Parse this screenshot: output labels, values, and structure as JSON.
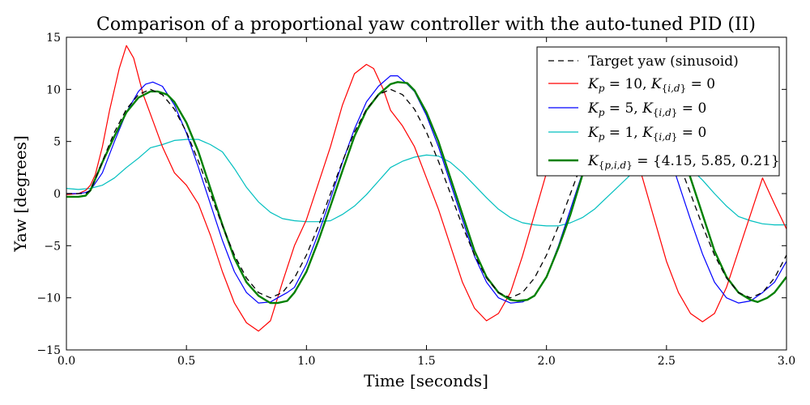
{
  "chart_data": {
    "type": "line",
    "title": "Comparison of a proportional yaw controller with the auto-tuned PID (II)",
    "xlabel": "Time [seconds]",
    "ylabel": "Yaw [degrees]",
    "xlim": [
      0.0,
      3.0
    ],
    "ylim": [
      -15,
      15
    ],
    "xticks": [
      0.0,
      0.5,
      1.0,
      1.5,
      2.0,
      2.5,
      3.0
    ],
    "xtick_labels": [
      "0.0",
      "0.5",
      "1.0",
      "1.5",
      "2.0",
      "2.5",
      "3.0"
    ],
    "yticks": [
      -15,
      -10,
      -5,
      0,
      5,
      10,
      15
    ],
    "ytick_labels": [
      "−15",
      "−10",
      "−5",
      "0",
      "5",
      "10",
      "15"
    ],
    "grid": false,
    "legend_position": "top-right",
    "series": [
      {
        "name": "Target yaw (sinusoid)",
        "color": "#000000",
        "style": "dashed",
        "width": 1.3,
        "x": [
          0.0,
          0.05,
          0.08,
          0.1,
          0.15,
          0.2,
          0.25,
          0.3,
          0.35,
          0.4,
          0.45,
          0.5,
          0.55,
          0.6,
          0.65,
          0.7,
          0.75,
          0.8,
          0.85,
          0.9,
          0.95,
          1.0,
          1.05,
          1.1,
          1.15,
          1.2,
          1.25,
          1.3,
          1.35,
          1.4,
          1.45,
          1.5,
          1.55,
          1.6,
          1.65,
          1.7,
          1.75,
          1.8,
          1.85,
          1.9,
          1.95,
          2.0,
          2.05,
          2.1,
          2.15,
          2.2,
          2.25,
          2.3,
          2.35,
          2.4,
          2.45,
          2.5,
          2.55,
          2.6,
          2.65,
          2.7,
          2.75,
          2.8,
          2.85,
          2.9,
          2.95,
          3.0
        ],
        "y": [
          0.0,
          0.0,
          0.0,
          0.3,
          3.1,
          5.9,
          8.1,
          9.5,
          10.0,
          9.5,
          8.1,
          5.9,
          3.1,
          0.0,
          -3.1,
          -5.9,
          -8.1,
          -9.5,
          -10.0,
          -9.5,
          -8.1,
          -5.9,
          -3.1,
          0.0,
          3.1,
          5.9,
          8.1,
          9.5,
          10.0,
          9.5,
          8.1,
          5.9,
          3.1,
          0.0,
          -3.1,
          -5.9,
          -8.1,
          -9.5,
          -10.0,
          -9.5,
          -8.1,
          -5.9,
          -3.1,
          0.0,
          3.1,
          5.9,
          8.1,
          9.5,
          10.0,
          9.5,
          8.1,
          5.9,
          3.1,
          0.0,
          -3.1,
          -5.9,
          -8.1,
          -9.5,
          -10.0,
          -9.5,
          -8.1,
          -5.9
        ]
      },
      {
        "name": "K_p = 10, K_{i,d} = 0",
        "color": "#ff0000",
        "style": "solid",
        "width": 1.2,
        "x": [
          0.0,
          0.05,
          0.08,
          0.1,
          0.12,
          0.15,
          0.18,
          0.22,
          0.25,
          0.28,
          0.32,
          0.36,
          0.4,
          0.45,
          0.5,
          0.55,
          0.6,
          0.65,
          0.7,
          0.75,
          0.8,
          0.85,
          0.9,
          0.95,
          1.0,
          1.05,
          1.1,
          1.15,
          1.2,
          1.25,
          1.28,
          1.32,
          1.35,
          1.4,
          1.45,
          1.5,
          1.55,
          1.6,
          1.65,
          1.7,
          1.75,
          1.8,
          1.85,
          1.9,
          1.95,
          2.0,
          2.05,
          2.1,
          2.15,
          2.2,
          2.25,
          2.3,
          2.35,
          2.4,
          2.45,
          2.5,
          2.55,
          2.6,
          2.65,
          2.7,
          2.75,
          2.8,
          2.85,
          2.9,
          2.95,
          3.0
        ],
        "y": [
          -0.1,
          0.0,
          0.3,
          0.8,
          1.8,
          4.5,
          8.0,
          12.0,
          14.2,
          13.0,
          9.5,
          7.0,
          4.5,
          2.0,
          0.8,
          -1.0,
          -4.0,
          -7.5,
          -10.5,
          -12.4,
          -13.2,
          -12.2,
          -8.5,
          -5.0,
          -2.5,
          1.0,
          4.5,
          8.5,
          11.5,
          12.4,
          12.0,
          10.0,
          8.0,
          6.5,
          4.5,
          1.5,
          -1.5,
          -5.0,
          -8.5,
          -11.0,
          -12.2,
          -11.5,
          -9.5,
          -6.0,
          -2.0,
          2.0,
          6.0,
          9.0,
          11.0,
          11.5,
          10.5,
          8.0,
          5.0,
          1.5,
          -2.5,
          -6.5,
          -9.5,
          -11.5,
          -12.3,
          -11.5,
          -9.0,
          -5.5,
          -2.0,
          1.5,
          -1.0,
          -3.4
        ]
      },
      {
        "name": "K_p = 5, K_{i,d} = 0",
        "color": "#0000ff",
        "style": "solid",
        "width": 1.2,
        "x": [
          0.0,
          0.05,
          0.08,
          0.1,
          0.15,
          0.2,
          0.25,
          0.3,
          0.33,
          0.36,
          0.4,
          0.45,
          0.5,
          0.55,
          0.6,
          0.65,
          0.7,
          0.75,
          0.8,
          0.85,
          0.88,
          0.92,
          0.95,
          1.0,
          1.05,
          1.1,
          1.15,
          1.2,
          1.25,
          1.3,
          1.35,
          1.38,
          1.42,
          1.45,
          1.5,
          1.55,
          1.6,
          1.65,
          1.7,
          1.75,
          1.8,
          1.85,
          1.9,
          1.95,
          2.0,
          2.05,
          2.1,
          2.15,
          2.2,
          2.25,
          2.3,
          2.35,
          2.4,
          2.45,
          2.5,
          2.55,
          2.6,
          2.65,
          2.7,
          2.75,
          2.8,
          2.85,
          2.9,
          2.95,
          3.0
        ],
        "y": [
          0.0,
          0.0,
          0.1,
          0.3,
          2.0,
          5.0,
          7.8,
          9.8,
          10.5,
          10.7,
          10.3,
          8.5,
          5.8,
          2.5,
          -1.0,
          -4.5,
          -7.5,
          -9.5,
          -10.5,
          -10.4,
          -10.0,
          -9.5,
          -9.0,
          -6.8,
          -3.8,
          -0.5,
          3.0,
          6.2,
          8.8,
          10.3,
          11.3,
          11.3,
          10.5,
          9.8,
          7.5,
          4.5,
          1.0,
          -2.5,
          -6.0,
          -8.5,
          -10.0,
          -10.5,
          -10.4,
          -9.8,
          -8.0,
          -5.0,
          -1.5,
          2.0,
          5.5,
          8.2,
          9.7,
          10.2,
          9.5,
          7.5,
          4.5,
          1.0,
          -2.5,
          -5.8,
          -8.5,
          -10.0,
          -10.5,
          -10.3,
          -9.5,
          -8.5,
          -6.5
        ]
      },
      {
        "name": "K_p = 1, K_{i,d} = 0",
        "color": "#00bfbf",
        "style": "solid",
        "width": 1.2,
        "x": [
          0.0,
          0.05,
          0.1,
          0.15,
          0.2,
          0.25,
          0.3,
          0.35,
          0.4,
          0.45,
          0.5,
          0.55,
          0.6,
          0.65,
          0.7,
          0.75,
          0.8,
          0.85,
          0.9,
          0.95,
          1.0,
          1.05,
          1.1,
          1.15,
          1.2,
          1.25,
          1.3,
          1.35,
          1.4,
          1.45,
          1.5,
          1.55,
          1.6,
          1.65,
          1.7,
          1.75,
          1.8,
          1.85,
          1.9,
          1.95,
          2.0,
          2.05,
          2.1,
          2.15,
          2.2,
          2.25,
          2.3,
          2.35,
          2.4,
          2.45,
          2.5,
          2.55,
          2.6,
          2.65,
          2.7,
          2.75,
          2.8,
          2.85,
          2.9,
          2.95,
          3.0
        ],
        "y": [
          0.5,
          0.4,
          0.5,
          0.8,
          1.5,
          2.5,
          3.4,
          4.4,
          4.7,
          5.1,
          5.2,
          5.2,
          4.7,
          4.0,
          2.4,
          0.6,
          -0.8,
          -1.8,
          -2.4,
          -2.6,
          -2.7,
          -2.7,
          -2.6,
          -2.0,
          -1.2,
          -0.1,
          1.2,
          2.5,
          3.1,
          3.5,
          3.7,
          3.6,
          3.0,
          2.0,
          0.8,
          -0.4,
          -1.5,
          -2.3,
          -2.8,
          -3.0,
          -3.1,
          -3.1,
          -2.8,
          -2.3,
          -1.5,
          -0.4,
          0.7,
          1.8,
          2.7,
          3.2,
          3.4,
          3.2,
          2.4,
          1.3,
          0.0,
          -1.2,
          -2.2,
          -2.6,
          -2.9,
          -3.0,
          -3.0
        ]
      },
      {
        "name": "K_{p,i,d} = {4.15, 5.85, 0.21}",
        "color": "#008000",
        "style": "solid",
        "width": 2.4,
        "x": [
          0.0,
          0.05,
          0.08,
          0.1,
          0.15,
          0.2,
          0.25,
          0.3,
          0.35,
          0.38,
          0.42,
          0.45,
          0.5,
          0.55,
          0.6,
          0.65,
          0.7,
          0.75,
          0.8,
          0.85,
          0.88,
          0.92,
          0.95,
          1.0,
          1.05,
          1.1,
          1.15,
          1.2,
          1.25,
          1.3,
          1.35,
          1.38,
          1.42,
          1.45,
          1.5,
          1.55,
          1.6,
          1.65,
          1.7,
          1.75,
          1.8,
          1.85,
          1.88,
          1.92,
          1.95,
          2.0,
          2.05,
          2.1,
          2.15,
          2.2,
          2.25,
          2.3,
          2.35,
          2.38,
          2.42,
          2.45,
          2.5,
          2.55,
          2.6,
          2.65,
          2.7,
          2.75,
          2.8,
          2.85,
          2.88,
          2.92,
          2.95,
          3.0
        ],
        "y": [
          -0.3,
          -0.3,
          -0.2,
          0.3,
          3.0,
          5.5,
          7.8,
          9.2,
          9.8,
          9.8,
          9.5,
          8.8,
          6.8,
          4.0,
          0.5,
          -3.0,
          -6.2,
          -8.5,
          -9.8,
          -10.5,
          -10.5,
          -10.3,
          -9.5,
          -7.5,
          -4.5,
          -1.2,
          2.2,
          5.5,
          8.0,
          9.5,
          10.5,
          10.7,
          10.6,
          9.9,
          7.8,
          5.0,
          1.5,
          -2.0,
          -5.5,
          -8.0,
          -9.5,
          -10.2,
          -10.3,
          -10.2,
          -9.8,
          -8.0,
          -5.2,
          -2.0,
          1.8,
          5.0,
          7.5,
          9.0,
          9.8,
          10.0,
          9.8,
          9.2,
          7.5,
          5.0,
          1.5,
          -2.0,
          -5.5,
          -8.0,
          -9.5,
          -10.2,
          -10.4,
          -10.0,
          -9.5,
          -8.0
        ]
      }
    ]
  }
}
